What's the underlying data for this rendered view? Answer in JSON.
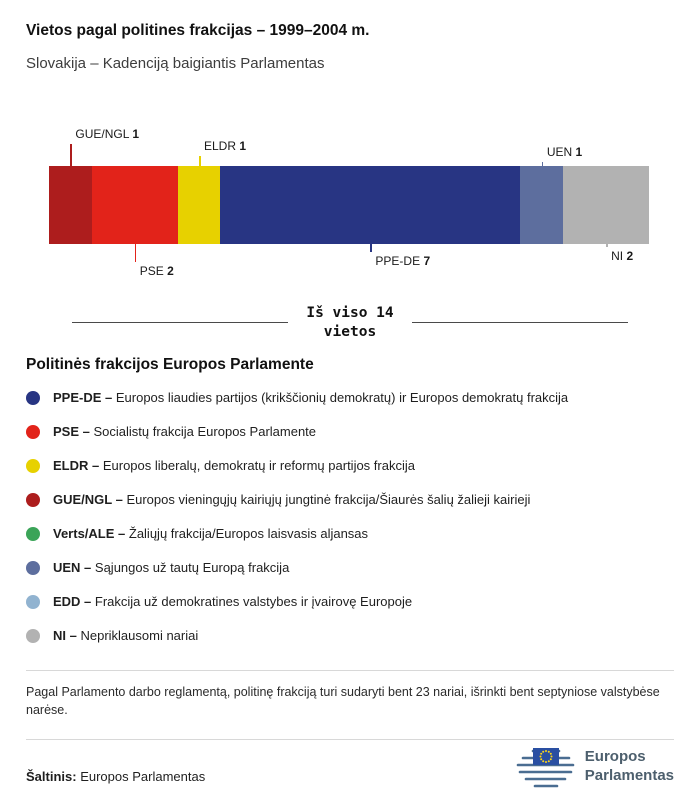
{
  "chart_data": {
    "type": "bar",
    "orientation": "horizontal-stacked",
    "title": "Vietos pagal politines frakcijas – 1999–2004 m.",
    "subtitle": "Slovakija – Kadenciją baigiantis Parlamentas",
    "total_seats": 14,
    "total_label": {
      "line1": "Iš viso 14",
      "line2": "vietos"
    },
    "segments": [
      {
        "label": "GUE/NGL",
        "value": 1,
        "color": "#ad1d1d",
        "label_position": "above",
        "leader_len": 22
      },
      {
        "label": "PSE",
        "value": 2,
        "color": "#e2231a",
        "label_position": "below",
        "leader_len": 18
      },
      {
        "label": "ELDR",
        "value": 1,
        "color": "#e7d100",
        "label_position": "above",
        "leader_len": 10
      },
      {
        "label": "PPE-DE",
        "value": 7,
        "color": "#283583",
        "label_position": "below",
        "leader_len": 8
      },
      {
        "label": "UEN",
        "value": 1,
        "color": "#5d6e9e",
        "label_position": "above",
        "leader_len": 4
      },
      {
        "label": "NI",
        "value": 2,
        "color": "#b2b2b2",
        "label_position": "below",
        "leader_len": 3
      }
    ]
  },
  "legend": {
    "heading": "Politinės frakcijos Europos Parlamente",
    "items": [
      {
        "abbr": "PPE-DE –",
        "desc": "Europos liaudies partijos (krikščionių demokratų) ir Europos demokratų frakcija",
        "color": "#283583"
      },
      {
        "abbr": "PSE –",
        "desc": "Socialistų frakcija Europos Parlamente",
        "color": "#e2231a"
      },
      {
        "abbr": "ELDR –",
        "desc": "Europos liberalų, demokratų ir reformų partijos frakcija",
        "color": "#e7d100"
      },
      {
        "abbr": "GUE/NGL –",
        "desc": "Europos vieningųjų kairiųjų jungtinė frakcija/Šiaurės šalių žalieji kairieji",
        "color": "#ad1d1d"
      },
      {
        "abbr": "Verts/ALE –",
        "desc": "Žaliųjų frakcija/Europos laisvasis aljansas",
        "color": "#3ba458"
      },
      {
        "abbr": "UEN –",
        "desc": "Sąjungos už tautų Europą frakcija",
        "color": "#5d6e9e"
      },
      {
        "abbr": "EDD –",
        "desc": "Frakcija už demokratines valstybes ir įvairovę Europoje",
        "color": "#91b3d0"
      },
      {
        "abbr": "NI –",
        "desc": "Nepriklausomi nariai",
        "color": "#b2b2b2"
      }
    ]
  },
  "footnote": "Pagal Parlamento darbo reglamentą, politinę frakciją turi sudaryti bent 23 nariai, išrinkti bent septyniose valstybėse narėse.",
  "source": {
    "label": "Šaltinis:",
    "value": "Europos Parlamentas"
  },
  "logo": {
    "line1": "Europos",
    "line2": "Parlamentas"
  }
}
